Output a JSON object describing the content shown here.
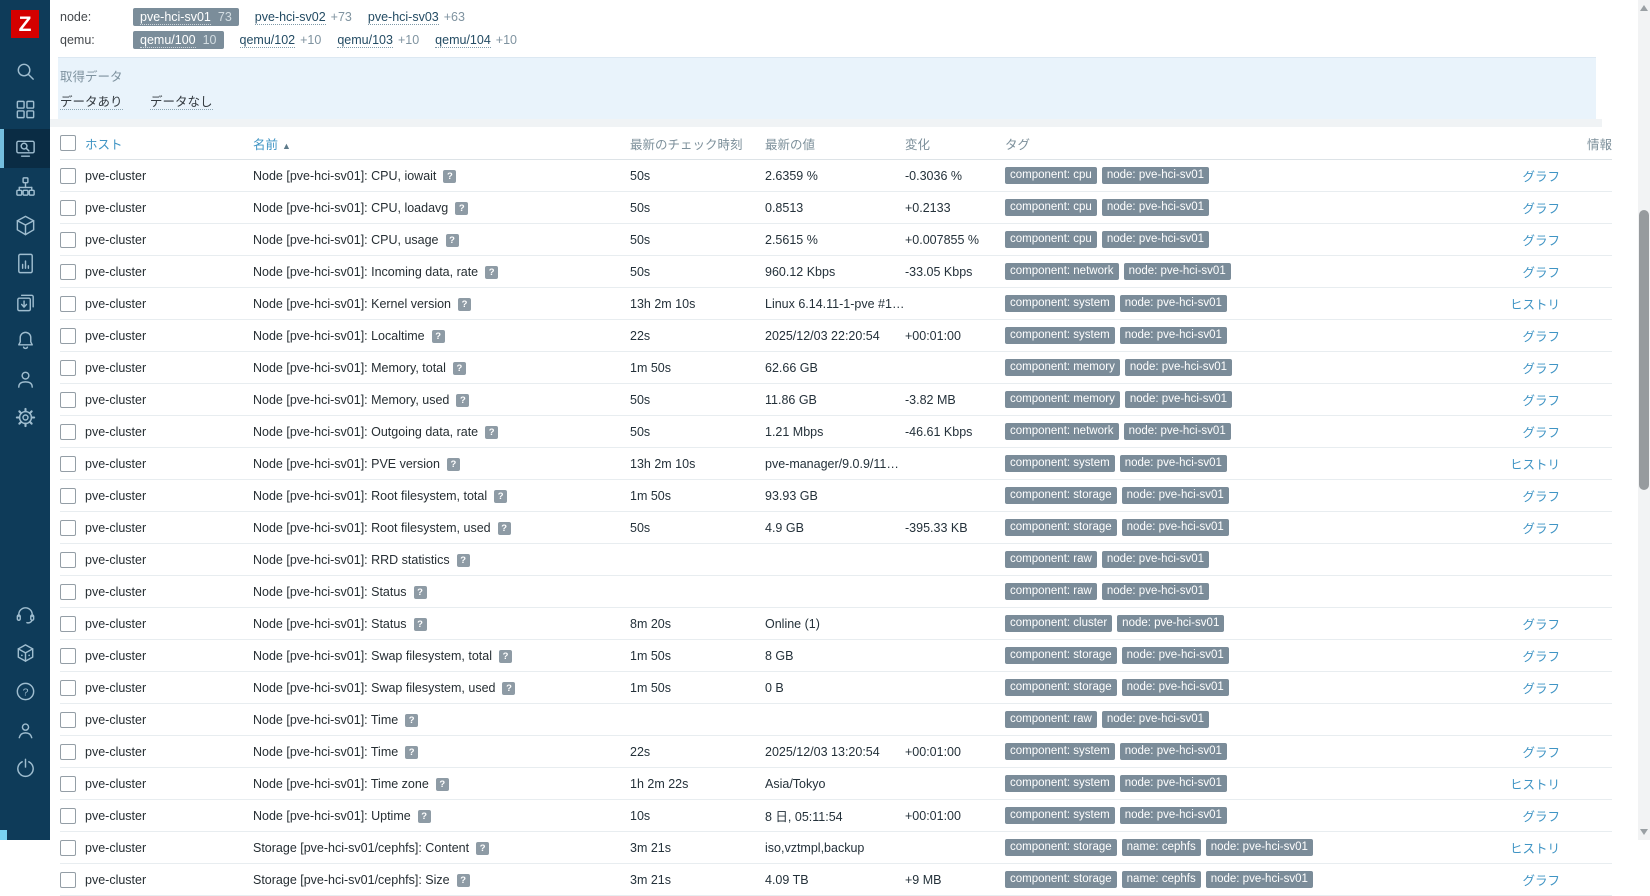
{
  "colors": {
    "sidebar_bg": "#0e3b59",
    "sidebar_active_bg": "#0a2c44",
    "sidebar_accent": "#74bede",
    "logo_red": "#d40000",
    "link_blue": "#3f94c4",
    "tag_bg": "#7b8c99",
    "chip_selected_bg": "#7b8d9a",
    "filter_panel_bg": "#e9f3fb"
  },
  "sidebar": {
    "logo_text": "Z",
    "active": "monitoring",
    "top_items": [
      "search",
      "dashboards",
      "monitoring",
      "services",
      "inventory",
      "reports",
      "data-collection",
      "alerts",
      "users",
      "administration"
    ],
    "bottom_items": [
      "support",
      "integrations",
      "help",
      "user-profile",
      "sign-out"
    ]
  },
  "subfilters": [
    {
      "label": "node:",
      "chips": [
        {
          "text": "pve-hci-sv01",
          "count": "73",
          "selected": true
        },
        {
          "text": "pve-hci-sv02",
          "count": "+73",
          "selected": false
        },
        {
          "text": "pve-hci-sv03",
          "count": "+63",
          "selected": false
        }
      ]
    },
    {
      "label": "qemu:",
      "chips": [
        {
          "text": "qemu/100",
          "count": "10",
          "selected": true
        },
        {
          "text": "qemu/102",
          "count": "+10",
          "selected": false
        },
        {
          "text": "qemu/103",
          "count": "+10",
          "selected": false
        },
        {
          "text": "qemu/104",
          "count": "+10",
          "selected": false
        }
      ]
    }
  ],
  "filter": {
    "title": "取得データ",
    "options": [
      "データあり",
      "データなし"
    ]
  },
  "table": {
    "hint": "?",
    "sort_indicator": "▲",
    "headers": {
      "host": "ホスト",
      "name": "名前",
      "last_check": "最新のチェック時刻",
      "last_value": "最新の値",
      "change": "変化",
      "tags": "タグ",
      "info": "情報"
    },
    "link_labels": {
      "graph": "グラフ",
      "history": "ヒストリ"
    },
    "rows": [
      {
        "host": "pve-cluster",
        "name": "Node [pve-hci-sv01]: CPU, iowait",
        "last_check": "50s",
        "last_value": "2.6359 %",
        "change": "-0.3036 %",
        "tags": [
          "component: cpu",
          "node: pve-hci-sv01"
        ],
        "link": "グラフ"
      },
      {
        "host": "pve-cluster",
        "name": "Node [pve-hci-sv01]: CPU, loadavg",
        "last_check": "50s",
        "last_value": "0.8513",
        "change": "+0.2133",
        "tags": [
          "component: cpu",
          "node: pve-hci-sv01"
        ],
        "link": "グラフ"
      },
      {
        "host": "pve-cluster",
        "name": "Node [pve-hci-sv01]: CPU, usage",
        "last_check": "50s",
        "last_value": "2.5615 %",
        "change": "+0.007855 %",
        "tags": [
          "component: cpu",
          "node: pve-hci-sv01"
        ],
        "link": "グラフ"
      },
      {
        "host": "pve-cluster",
        "name": "Node [pve-hci-sv01]: Incoming data, rate",
        "last_check": "50s",
        "last_value": "960.12 Kbps",
        "change": "-33.05 Kbps",
        "tags": [
          "component: network",
          "node: pve-hci-sv01"
        ],
        "link": "グラフ"
      },
      {
        "host": "pve-cluster",
        "name": "Node [pve-hci-sv01]: Kernel version",
        "last_check": "13h 2m 10s",
        "last_value": "Linux 6.14.11-1-pve #1…",
        "change": "",
        "tags": [
          "component: system",
          "node: pve-hci-sv01"
        ],
        "link": "ヒストリ"
      },
      {
        "host": "pve-cluster",
        "name": "Node [pve-hci-sv01]: Localtime",
        "last_check": "22s",
        "last_value": "2025/12/03 22:20:54",
        "change": "+00:01:00",
        "tags": [
          "component: system",
          "node: pve-hci-sv01"
        ],
        "link": "グラフ"
      },
      {
        "host": "pve-cluster",
        "name": "Node [pve-hci-sv01]: Memory, total",
        "last_check": "1m 50s",
        "last_value": "62.66 GB",
        "change": "",
        "tags": [
          "component: memory",
          "node: pve-hci-sv01"
        ],
        "link": "グラフ"
      },
      {
        "host": "pve-cluster",
        "name": "Node [pve-hci-sv01]: Memory, used",
        "last_check": "50s",
        "last_value": "11.86 GB",
        "change": "-3.82 MB",
        "tags": [
          "component: memory",
          "node: pve-hci-sv01"
        ],
        "link": "グラフ"
      },
      {
        "host": "pve-cluster",
        "name": "Node [pve-hci-sv01]: Outgoing data, rate",
        "last_check": "50s",
        "last_value": "1.21 Mbps",
        "change": "-46.61 Kbps",
        "tags": [
          "component: network",
          "node: pve-hci-sv01"
        ],
        "link": "グラフ"
      },
      {
        "host": "pve-cluster",
        "name": "Node [pve-hci-sv01]: PVE version",
        "last_check": "13h 2m 10s",
        "last_value": "pve-manager/9.0.9/11…",
        "change": "",
        "tags": [
          "component: system",
          "node: pve-hci-sv01"
        ],
        "link": "ヒストリ"
      },
      {
        "host": "pve-cluster",
        "name": "Node [pve-hci-sv01]: Root filesystem, total",
        "last_check": "1m 50s",
        "last_value": "93.93 GB",
        "change": "",
        "tags": [
          "component: storage",
          "node: pve-hci-sv01"
        ],
        "link": "グラフ"
      },
      {
        "host": "pve-cluster",
        "name": "Node [pve-hci-sv01]: Root filesystem, used",
        "last_check": "50s",
        "last_value": "4.9 GB",
        "change": "-395.33 KB",
        "tags": [
          "component: storage",
          "node: pve-hci-sv01"
        ],
        "link": "グラフ"
      },
      {
        "host": "pve-cluster",
        "name": "Node [pve-hci-sv01]: RRD statistics",
        "last_check": "",
        "last_value": "",
        "change": "",
        "tags": [
          "component: raw",
          "node: pve-hci-sv01"
        ],
        "link": ""
      },
      {
        "host": "pve-cluster",
        "name": "Node [pve-hci-sv01]: Status",
        "last_check": "",
        "last_value": "",
        "change": "",
        "tags": [
          "component: raw",
          "node: pve-hci-sv01"
        ],
        "link": ""
      },
      {
        "host": "pve-cluster",
        "name": "Node [pve-hci-sv01]: Status",
        "last_check": "8m 20s",
        "last_value": "Online (1)",
        "change": "",
        "tags": [
          "component: cluster",
          "node: pve-hci-sv01"
        ],
        "link": "グラフ"
      },
      {
        "host": "pve-cluster",
        "name": "Node [pve-hci-sv01]: Swap filesystem, total",
        "last_check": "1m 50s",
        "last_value": "8 GB",
        "change": "",
        "tags": [
          "component: storage",
          "node: pve-hci-sv01"
        ],
        "link": "グラフ"
      },
      {
        "host": "pve-cluster",
        "name": "Node [pve-hci-sv01]: Swap filesystem, used",
        "last_check": "1m 50s",
        "last_value": "0 B",
        "change": "",
        "tags": [
          "component: storage",
          "node: pve-hci-sv01"
        ],
        "link": "グラフ"
      },
      {
        "host": "pve-cluster",
        "name": "Node [pve-hci-sv01]: Time",
        "last_check": "",
        "last_value": "",
        "change": "",
        "tags": [
          "component: raw",
          "node: pve-hci-sv01"
        ],
        "link": ""
      },
      {
        "host": "pve-cluster",
        "name": "Node [pve-hci-sv01]: Time",
        "last_check": "22s",
        "last_value": "2025/12/03 13:20:54",
        "change": "+00:01:00",
        "tags": [
          "component: system",
          "node: pve-hci-sv01"
        ],
        "link": "グラフ"
      },
      {
        "host": "pve-cluster",
        "name": "Node [pve-hci-sv01]: Time zone",
        "last_check": "1h 2m 22s",
        "last_value": "Asia/Tokyo",
        "change": "",
        "tags": [
          "component: system",
          "node: pve-hci-sv01"
        ],
        "link": "ヒストリ"
      },
      {
        "host": "pve-cluster",
        "name": "Node [pve-hci-sv01]: Uptime",
        "last_check": "10s",
        "last_value": "8 日, 05:11:54",
        "change": "+00:01:00",
        "tags": [
          "component: system",
          "node: pve-hci-sv01"
        ],
        "link": "グラフ"
      },
      {
        "host": "pve-cluster",
        "name": "Storage [pve-hci-sv01/cephfs]: Content",
        "last_check": "3m 21s",
        "last_value": "iso,vztmpl,backup",
        "change": "",
        "tags": [
          "component: storage",
          "name: cephfs",
          "node: pve-hci-sv01"
        ],
        "link": "ヒストリ"
      },
      {
        "host": "pve-cluster",
        "name": "Storage [pve-hci-sv01/cephfs]: Size",
        "last_check": "3m 21s",
        "last_value": "4.09 TB",
        "change": "+9 MB",
        "tags": [
          "component: storage",
          "name: cephfs",
          "node: pve-hci-sv01"
        ],
        "link": "グラフ"
      }
    ]
  }
}
